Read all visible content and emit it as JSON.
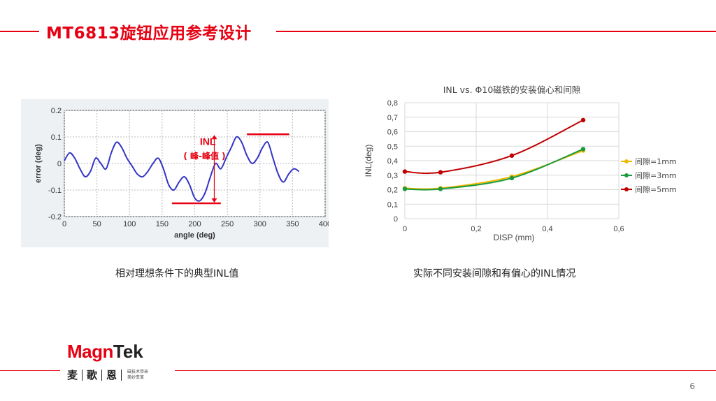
{
  "slide": {
    "title": "MT6813旋钮应用参考设计",
    "page_number": "6",
    "brand_color": "#e60012"
  },
  "left_figure": {
    "caption": "相对理想条件下的典型INL值",
    "annotation_main": "INL",
    "annotation_sub": "( 峰-峰值 )"
  },
  "right_figure": {
    "caption": "实际不同安装间隙和有偏心的INL情况"
  },
  "logo": {
    "brand_a": "Mag",
    "brand_b": "n",
    "brand_c": "Tek",
    "cn_1": "麦",
    "cn_2": "歌",
    "cn_3": "恩",
    "slogan_line1": "磁技术带来",
    "slogan_line2": "美妙变革"
  },
  "chart_data": [
    {
      "type": "line",
      "title": "",
      "xlabel": "angle (deg)",
      "ylabel": "error (deg)",
      "xlim": [
        0,
        400
      ],
      "ylim": [
        -0.2,
        0.2
      ],
      "xticks": [
        "0",
        "50",
        "100",
        "150",
        "200",
        "250",
        "300",
        "350",
        "400"
      ],
      "yticks": [
        "0.2",
        "0.1",
        "0",
        "-0.1",
        "-0.2"
      ],
      "grid": true,
      "series": [
        {
          "color": "#3535c8",
          "x": [
            0,
            8,
            16,
            24,
            32,
            40,
            48,
            56,
            64,
            72,
            80,
            88,
            96,
            104,
            112,
            120,
            128,
            136,
            144,
            152,
            160,
            168,
            176,
            184,
            192,
            200,
            208,
            216,
            224,
            232,
            240,
            248,
            256,
            264,
            272,
            280,
            288,
            296,
            304,
            312,
            320,
            328,
            336,
            344,
            352,
            360
          ],
          "y": [
            0.01,
            0.04,
            0.02,
            -0.02,
            -0.05,
            -0.03,
            0.02,
            0.0,
            -0.02,
            0.04,
            0.08,
            0.06,
            0.02,
            -0.01,
            -0.04,
            -0.05,
            -0.03,
            0.0,
            0.02,
            -0.02,
            -0.08,
            -0.1,
            -0.07,
            -0.05,
            -0.08,
            -0.13,
            -0.14,
            -0.11,
            -0.05,
            0.0,
            -0.02,
            0.02,
            0.06,
            0.1,
            0.08,
            0.03,
            0.0,
            0.02,
            0.06,
            0.08,
            0.02,
            -0.04,
            -0.07,
            -0.04,
            -0.02,
            -0.03
          ]
        }
      ],
      "annotations": [
        {
          "text": "INL"
        },
        {
          "text": "( 峰-峰值 )"
        }
      ],
      "marker_lines": {
        "top": 0.11,
        "bottom": -0.15,
        "arrow_x": 230
      },
      "marker_color": "#e60012"
    },
    {
      "type": "line",
      "title": "INL vs. Φ10磁铁的安装偏心和间隙",
      "xlabel": "DISP (mm)",
      "ylabel": "INL(deg)",
      "xlim": [
        0,
        0.6
      ],
      "ylim": [
        0,
        0.8
      ],
      "xticks": [
        "0",
        "0,2",
        "0,4",
        "0,6"
      ],
      "yticks": [
        "0",
        "0,1",
        "0,2",
        "0,3",
        "0,4",
        "0,5",
        "0,6",
        "0,7",
        "0,8"
      ],
      "grid": true,
      "legend": "right",
      "categories": [
        0,
        0.1,
        0.3,
        0.5
      ],
      "series": [
        {
          "name": "间隙=1mm",
          "color": "#f0b800",
          "x": [
            0,
            0.1,
            0.3,
            0.5
          ],
          "y": [
            0.21,
            0.21,
            0.29,
            0.47
          ]
        },
        {
          "name": "间隙=3mm",
          "color": "#1a9b3c",
          "x": [
            0,
            0.1,
            0.3,
            0.5
          ],
          "y": [
            0.205,
            0.205,
            0.28,
            0.48
          ]
        },
        {
          "name": "间隙=5mm",
          "color": "#c00000",
          "x": [
            0,
            0.1,
            0.3,
            0.5
          ],
          "y": [
            0.325,
            0.32,
            0.435,
            0.68
          ]
        }
      ]
    }
  ]
}
